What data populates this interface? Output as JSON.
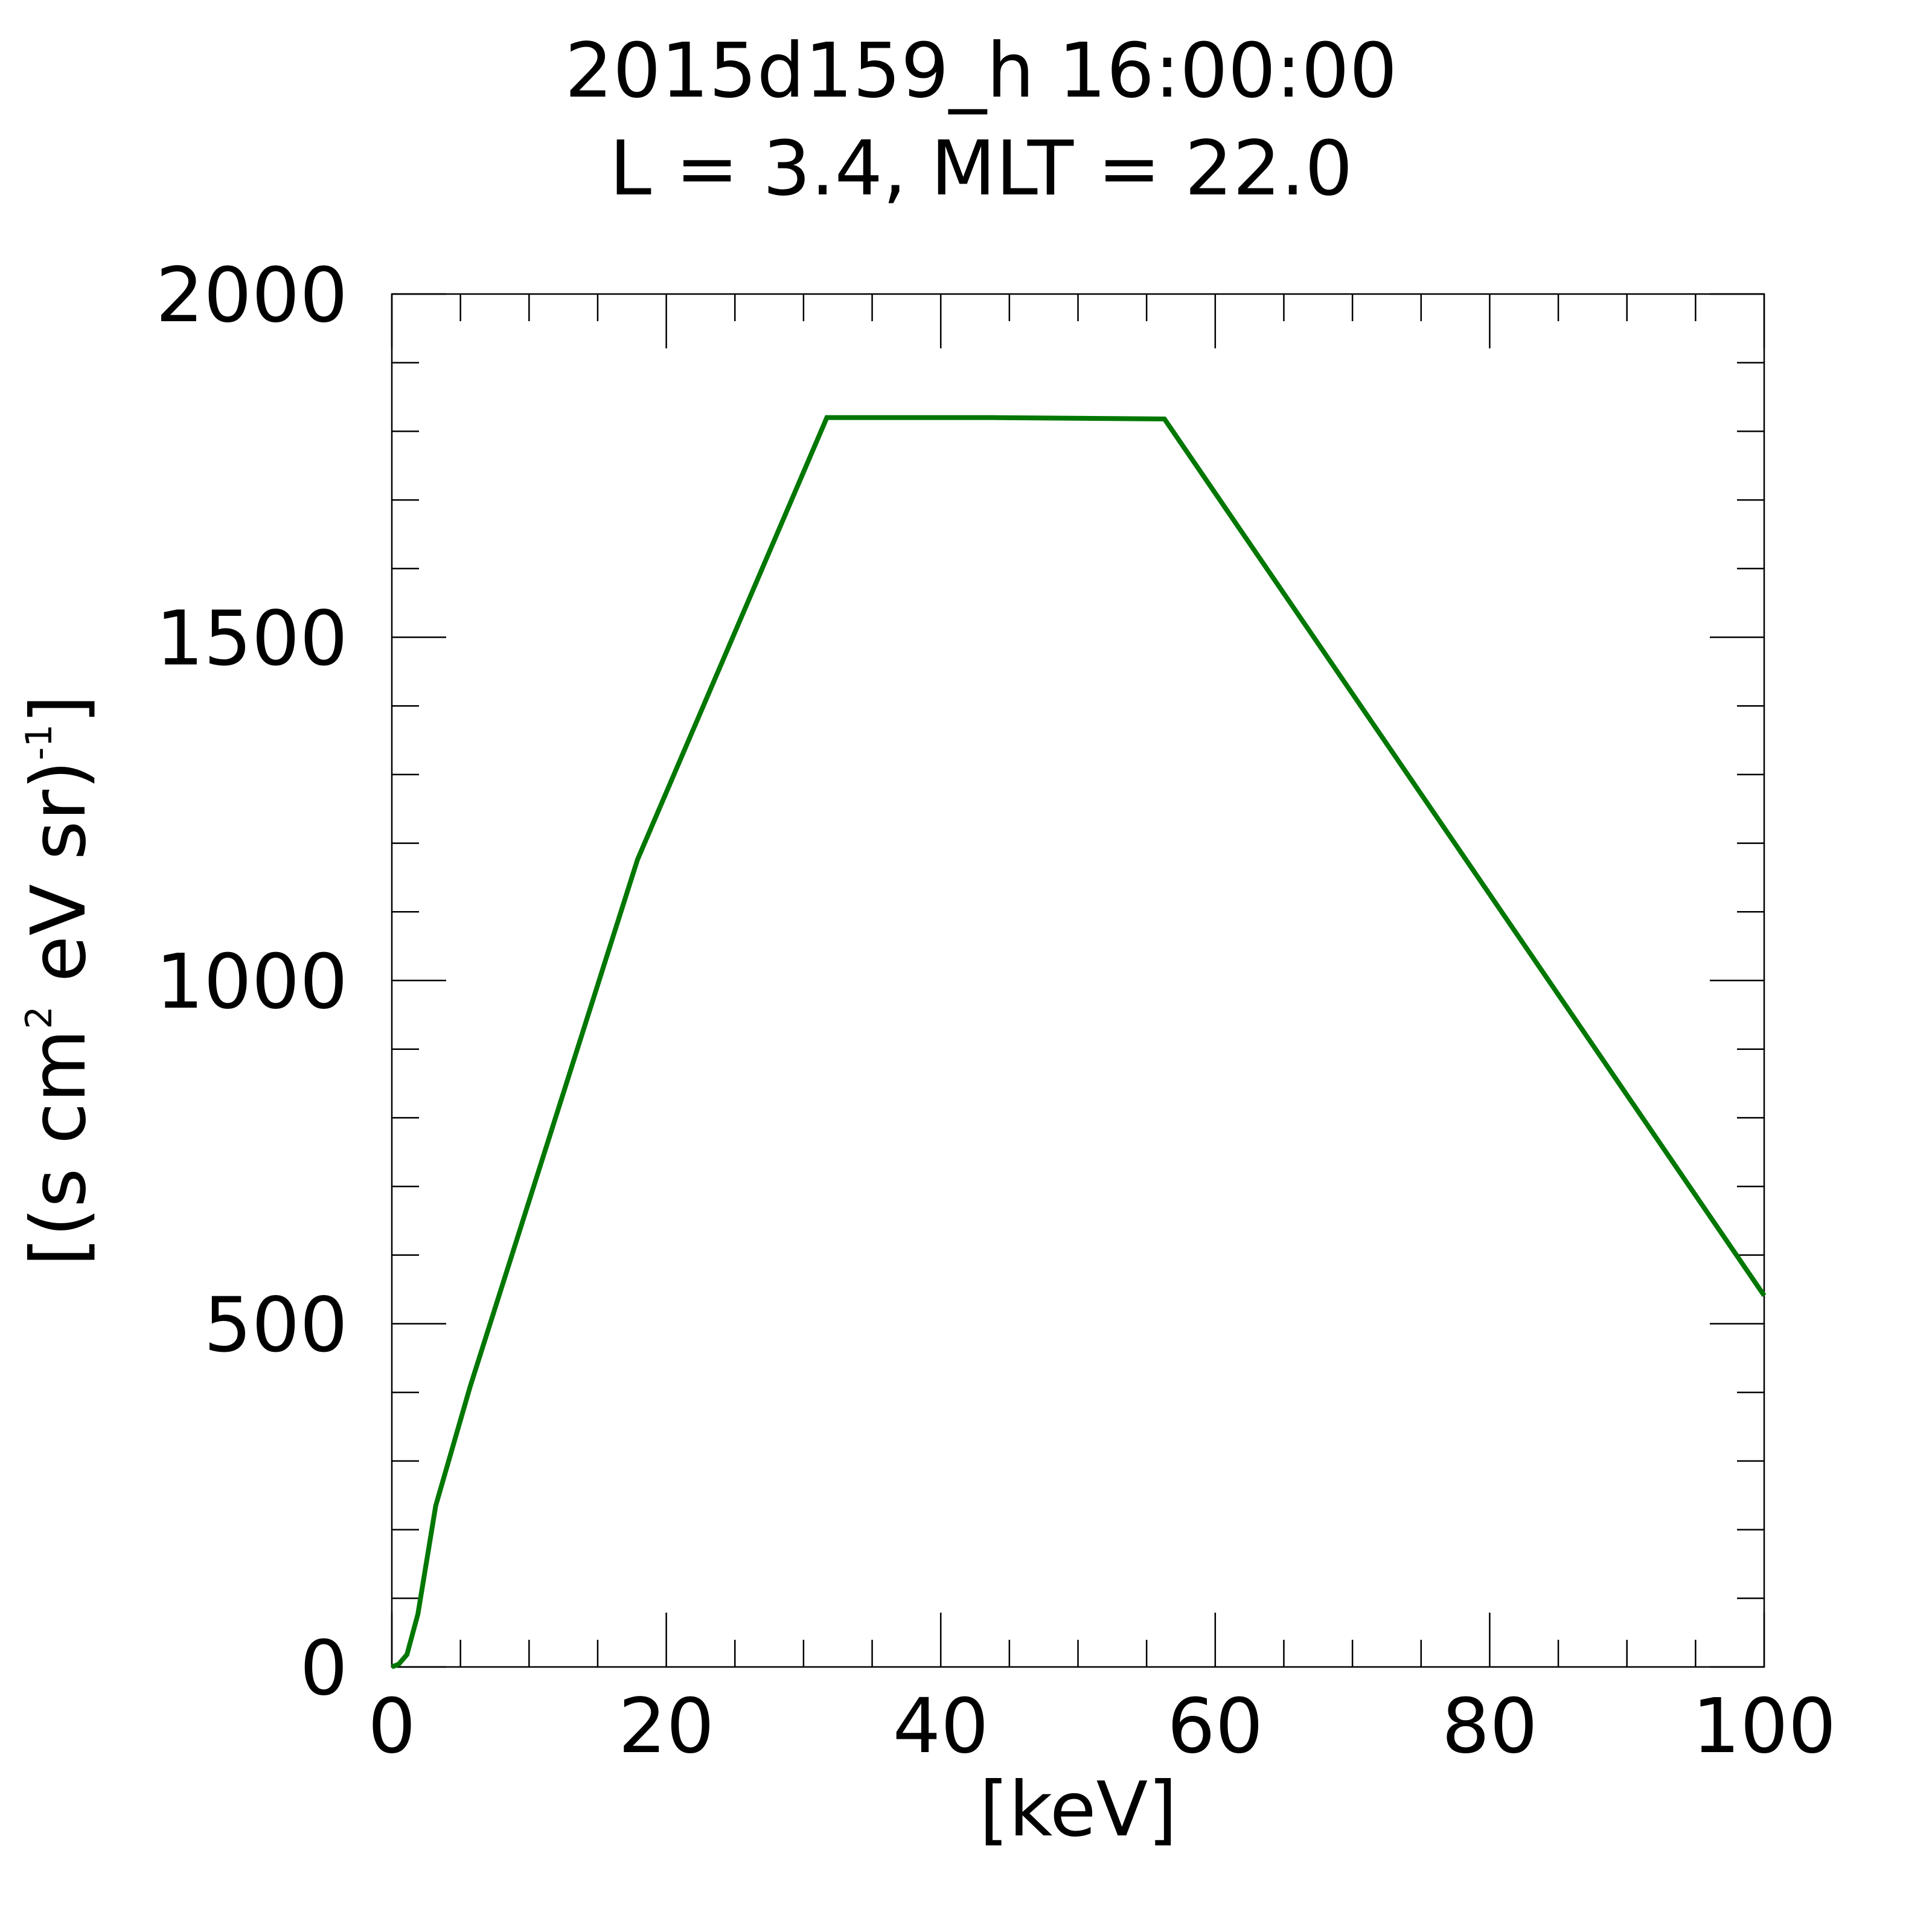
{
  "chart_data": {
    "type": "line",
    "title": [
      "2015d159_h  16:00:00",
      "L = 3.4, MLT = 22.0"
    ],
    "xlabel": "[keV]",
    "ylabel": [
      "[(s cm",
      "2",
      " eV sr)",
      "-1",
      "]"
    ],
    "x": [
      0,
      0.5,
      1.1,
      1.9,
      3.2,
      5.7,
      17.9,
      31.7,
      43.9,
      56.3,
      100
    ],
    "values": [
      0,
      4,
      18,
      77,
      235,
      408,
      1176,
      1820,
      1820,
      1818,
      541
    ],
    "color": "#007700",
    "xlim": [
      0,
      100
    ],
    "xticks": [
      0,
      20,
      40,
      60,
      80,
      100
    ],
    "ylim": [
      0,
      2000
    ],
    "yticks": [
      0,
      500,
      1000,
      1500,
      2000
    ]
  }
}
